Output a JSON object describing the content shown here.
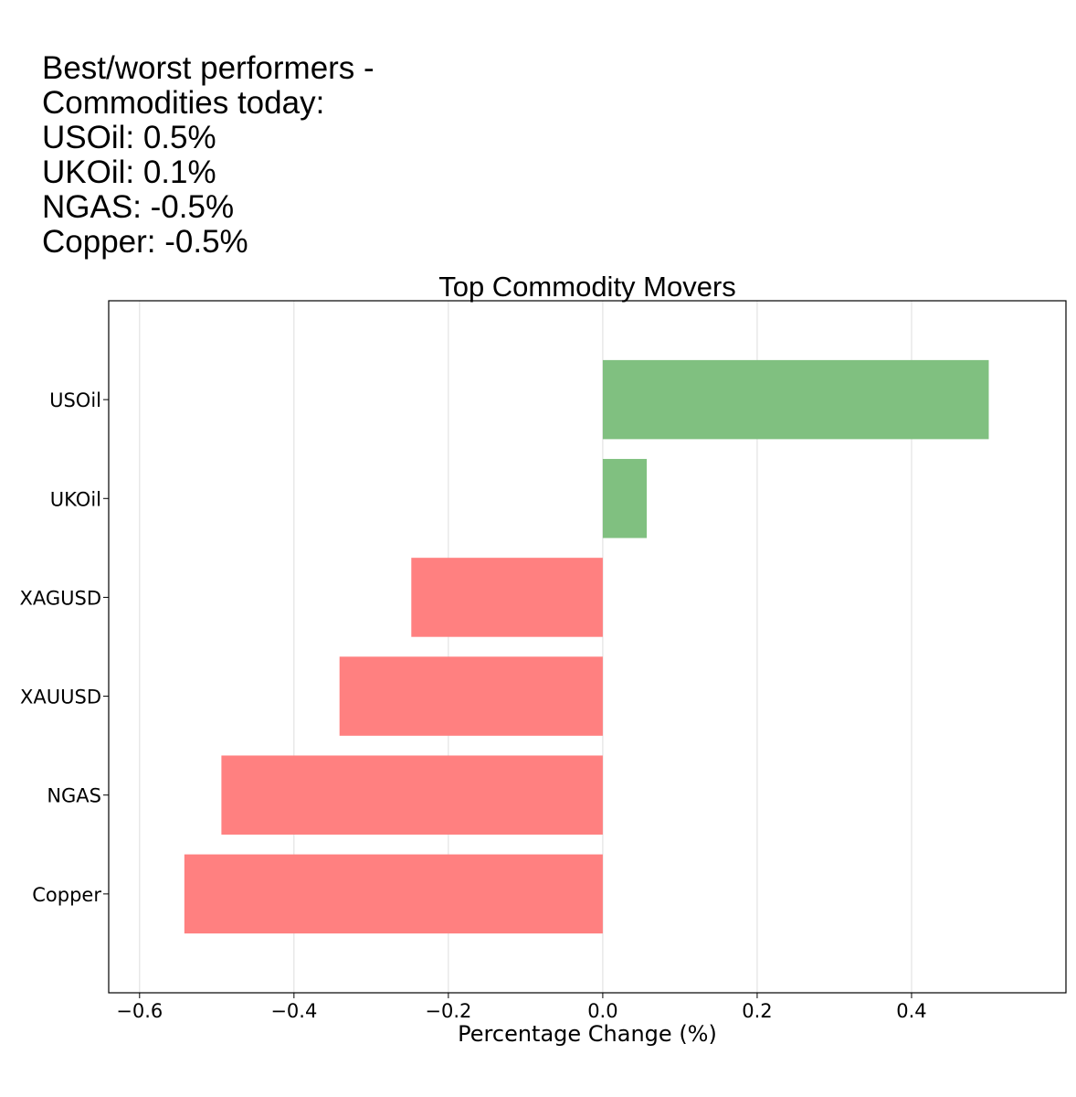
{
  "summary": {
    "lines": [
      "Best/worst performers -",
      "Commodities today:",
      "USOil: 0.5%",
      "UKOil: 0.1%",
      "NGAS: -0.5%",
      "Copper: -0.5%"
    ]
  },
  "chart_data": {
    "type": "bar",
    "orientation": "horizontal",
    "title": "Top Commodity Movers",
    "xlabel": "Percentage Change (%)",
    "ylabel": "",
    "categories": [
      "USOil",
      "UKOil",
      "XAGUSD",
      "XAUUSD",
      "NGAS",
      "Copper"
    ],
    "values": [
      0.5,
      0.057,
      -0.248,
      -0.341,
      -0.494,
      -0.542
    ],
    "xlim": [
      -0.64,
      0.6
    ],
    "xticks": [
      -0.6,
      -0.4,
      -0.2,
      0.0,
      0.2,
      0.4
    ],
    "xtick_labels": [
      "−0.6",
      "−0.4",
      "−0.2",
      "0.0",
      "0.2",
      "0.4"
    ],
    "grid": "vertical",
    "colors": {
      "positive": "#80c080",
      "negative": "#ff8080",
      "grid": "#dddddd",
      "frame": "#000000"
    }
  }
}
